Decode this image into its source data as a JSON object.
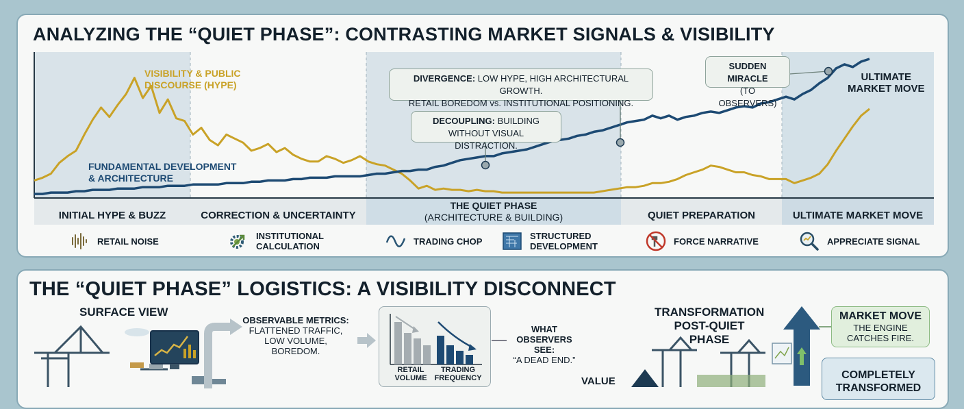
{
  "top_panel": {
    "title": "ANALYZING THE “QUIET PHASE”: CONTRASTING MARKET SIGNALS & VISIBILITY",
    "series_labels": {
      "hype_line1": "VISIBILITY & PUBLIC",
      "hype_line2": "DISCOURSE (HYPE)",
      "fund_line1": "FUNDAMENTAL DEVELOPMENT",
      "fund_line2": "& ARCHITECTURE"
    },
    "callouts": {
      "divergence_bold": "DIVERGENCE:",
      "divergence_rest": " LOW HYPE, HIGH ARCHITECTURAL GROWTH.",
      "divergence_line2": "RETAIL BOREDOM vs. INSTITUTIONAL POSITIONING.",
      "decoupling_bold": "DECOUPLING:",
      "decoupling_rest": " BUILDING",
      "decoupling_line2": "WITHOUT VISUAL DISTRACTION.",
      "miracle_line1": "SUDDEN MIRACLE",
      "miracle_line2": "(TO OBSERVERS)",
      "ultimate_line1": "ULTIMATE",
      "ultimate_line2": "MARKET MOVE"
    },
    "phases": [
      {
        "label": "INITIAL HYPE & BUZZ"
      },
      {
        "label": "CORRECTION & UNCERTAINTY"
      },
      {
        "label": "THE QUIET PHASE",
        "sublabel": "(ARCHITECTURE & BUILDING)"
      },
      {
        "label": "QUIET PREPARATION"
      },
      {
        "label": "ULTIMATE MARKET MOVE"
      }
    ],
    "legend": [
      {
        "icon": "sound-wave-icon",
        "label": "RETAIL NOISE"
      },
      {
        "icon": "gear-arrow-icon",
        "label1": "INSTITUTIONAL",
        "label2": "CALCULATION"
      },
      {
        "icon": "wave-icon",
        "label": "TRADING CHOP"
      },
      {
        "icon": "blueprint-icon",
        "label1": "STRUCTURED",
        "label2": "DEVELOPMENT"
      },
      {
        "icon": "no-hammer-icon",
        "label": "FORCE NARRATIVE"
      },
      {
        "icon": "magnifier-icon",
        "label": "APPRECIATE SIGNAL"
      }
    ],
    "colors": {
      "hype": "#c9a227",
      "fundamental": "#1d4a73",
      "shade": "#d4e1e8",
      "phase_bar": "#e5eaec",
      "phase_bar_dark": "#cddbe4"
    }
  },
  "chart_data": {
    "type": "line",
    "title": "ANALYZING THE “QUIET PHASE”: CONTRASTING MARKET SIGNALS & VISIBILITY",
    "xlabel": "",
    "ylabel": "",
    "ylim": [
      0,
      100
    ],
    "x_phases": [
      "INITIAL HYPE & BUZZ",
      "CORRECTION & UNCERTAINTY",
      "THE QUIET PHASE",
      "QUIET PREPARATION",
      "ULTIMATE MARKET MOVE"
    ],
    "series": [
      {
        "name": "VISIBILITY & PUBLIC DISCOURSE (HYPE)",
        "x": [
          0,
          1,
          2,
          3,
          4,
          5,
          6,
          7,
          8,
          9,
          10,
          11,
          12,
          13,
          14,
          15,
          16,
          17,
          18,
          19,
          20,
          21,
          22,
          23,
          24,
          25,
          26,
          27,
          28,
          29,
          30,
          31,
          32,
          33,
          34,
          35,
          36,
          37,
          38,
          39,
          40,
          41,
          42,
          43,
          44,
          45,
          46,
          47,
          48,
          49,
          50,
          51,
          52,
          53,
          54,
          55,
          56,
          57,
          58,
          59,
          60,
          61,
          62,
          63,
          64,
          65,
          66,
          67,
          68,
          69,
          70,
          71,
          72,
          73,
          74,
          75,
          76,
          77,
          78,
          79,
          80,
          81,
          82,
          83,
          84,
          85,
          86,
          87,
          88,
          89,
          90,
          91,
          92,
          93,
          94,
          95,
          96,
          97,
          98,
          99,
          100
        ],
        "values": [
          12,
          14,
          17,
          25,
          30,
          34,
          46,
          57,
          66,
          59,
          68,
          76,
          88,
          73,
          82,
          62,
          72,
          58,
          56,
          46,
          51,
          42,
          38,
          46,
          43,
          40,
          34,
          36,
          39,
          33,
          36,
          31,
          28,
          26,
          26,
          30,
          28,
          25,
          27,
          30,
          26,
          24,
          23,
          20,
          17,
          12,
          6,
          8,
          5,
          6,
          5,
          5,
          4,
          5,
          4,
          4,
          3,
          3,
          3,
          3,
          3,
          3,
          3,
          3,
          3,
          3,
          3,
          3,
          4,
          5,
          6,
          7,
          7,
          8,
          10,
          10,
          11,
          13,
          16,
          18,
          20,
          23,
          22,
          20,
          18,
          18,
          16,
          15,
          13,
          13,
          13,
          10,
          12,
          14,
          17,
          24,
          34,
          43,
          52,
          60,
          65
        ]
      },
      {
        "name": "FUNDAMENTAL DEVELOPMENT & ARCHITECTURE",
        "x": [
          0,
          1,
          2,
          3,
          4,
          5,
          6,
          7,
          8,
          9,
          10,
          11,
          12,
          13,
          14,
          15,
          16,
          17,
          18,
          19,
          20,
          21,
          22,
          23,
          24,
          25,
          26,
          27,
          28,
          29,
          30,
          31,
          32,
          33,
          34,
          35,
          36,
          37,
          38,
          39,
          40,
          41,
          42,
          43,
          44,
          45,
          46,
          47,
          48,
          49,
          50,
          51,
          52,
          53,
          54,
          55,
          56,
          57,
          58,
          59,
          60,
          61,
          62,
          63,
          64,
          65,
          66,
          67,
          68,
          69,
          70,
          71,
          72,
          73,
          74,
          75,
          76,
          77,
          78,
          79,
          80,
          81,
          82,
          83,
          84,
          85,
          86,
          87,
          88,
          89,
          90,
          91,
          92,
          93,
          94,
          95,
          96,
          97,
          98,
          99,
          100
        ],
        "values": [
          2,
          2,
          3,
          3,
          3,
          4,
          4,
          5,
          5,
          5,
          6,
          6,
          6,
          7,
          7,
          7,
          8,
          8,
          8,
          9,
          9,
          9,
          9,
          10,
          10,
          10,
          11,
          11,
          12,
          12,
          12,
          13,
          13,
          14,
          14,
          14,
          15,
          15,
          15,
          15,
          16,
          17,
          17,
          18,
          19,
          19,
          20,
          20,
          22,
          23,
          25,
          27,
          28,
          29,
          30,
          30,
          32,
          33,
          34,
          35,
          37,
          39,
          41,
          42,
          43,
          45,
          46,
          48,
          49,
          51,
          53,
          55,
          56,
          57,
          60,
          58,
          60,
          57,
          59,
          60,
          62,
          63,
          62,
          64,
          66,
          67,
          66,
          69,
          70,
          72,
          74,
          72,
          76,
          79,
          84,
          88,
          95,
          98,
          96,
          100,
          102
        ]
      }
    ],
    "annotations": [
      "DIVERGENCE: LOW HYPE, HIGH ARCHITECTURAL GROWTH. RETAIL BOREDOM vs. INSTITUTIONAL POSITIONING.",
      "DECOUPLING: BUILDING WITHOUT VISUAL DISTRACTION.",
      "SUDDEN MIRACLE (TO OBSERVERS)",
      "ULTIMATE MARKET MOVE"
    ],
    "grid": false,
    "legend": "inline"
  },
  "bottom_panel": {
    "title": "THE “QUIET PHASE” LOGISTICS: A VISIBILITY DISCONNECT",
    "surface_view": "SURFACE VIEW",
    "observable_line1": "OBSERVABLE METRICS:",
    "observable_line2": "FLATTENED TRAFFIC,",
    "observable_line3": "LOW VOLUME,",
    "observable_line4": "BOREDOM.",
    "mini_chart_labels": {
      "left1": "RETAIL",
      "left2": "VOLUME",
      "right1": "TRADING",
      "right2": "FREQUENCY"
    },
    "observers_line1": "WHAT",
    "observers_line2": "OBSERVERS SEE:",
    "observers_line3": "“A DEAD END.”",
    "value_label": "VALUE",
    "transformation_line1": "TRANSFORMATION",
    "transformation_line2": "POST-QUIET PHASE",
    "market_move_title": "MARKET MOVE",
    "market_move_line1": "THE ENGINE",
    "market_move_line2": "CATCHES FIRE.",
    "transformed_line1": "COMPLETELY",
    "transformed_line2": "TRANSFORMED"
  }
}
